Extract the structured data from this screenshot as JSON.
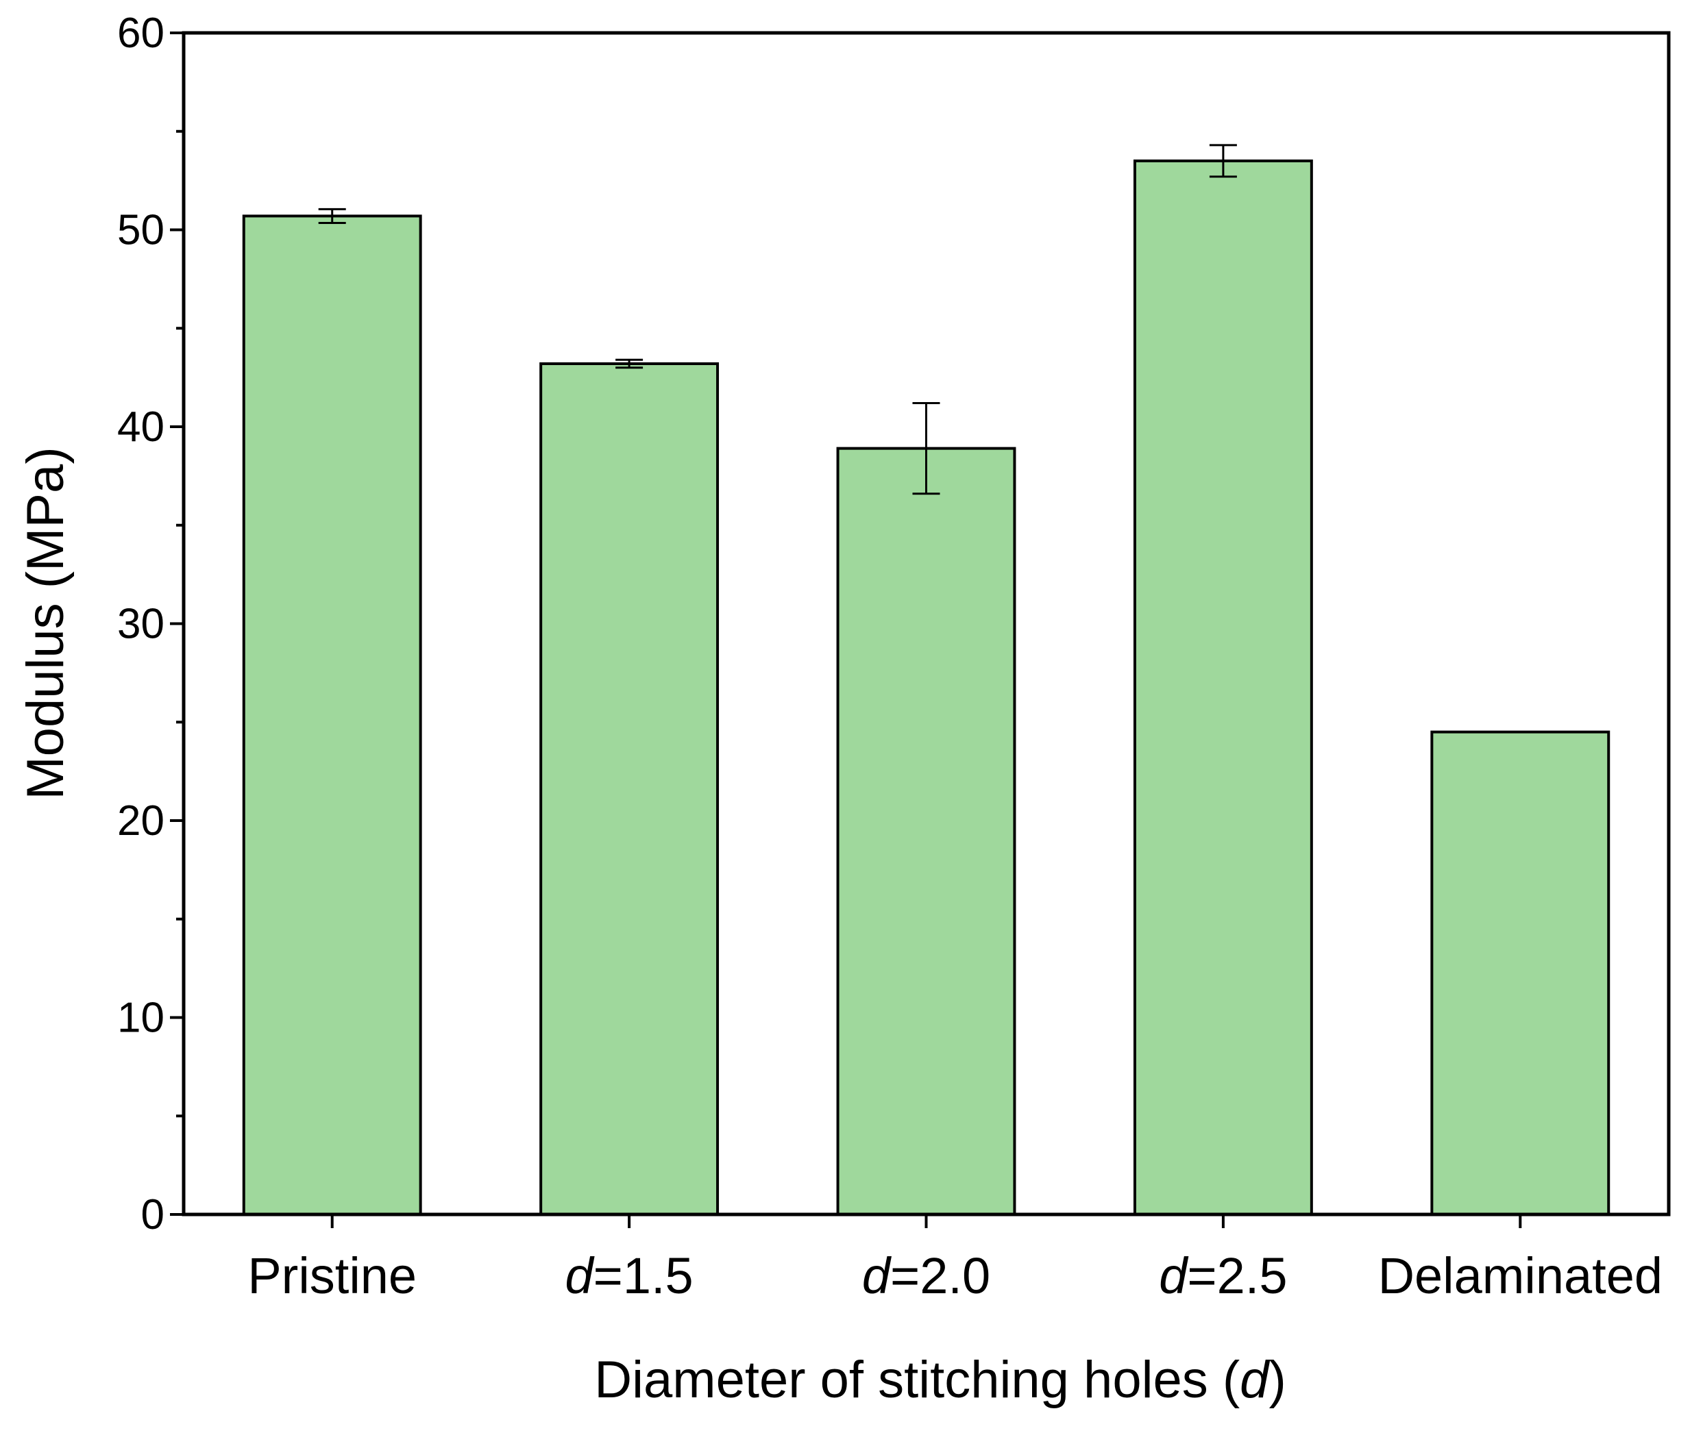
{
  "chart_data": {
    "type": "bar",
    "title": "",
    "xlabel": "Diameter of stitching holes (d)",
    "xlabel_parts": {
      "prefix": "Diameter of stitching holes (",
      "var": "d",
      "suffix": ")"
    },
    "ylabel": "Modulus (MPa)",
    "ylim": [
      0,
      60
    ],
    "yticks": [
      0,
      10,
      20,
      30,
      40,
      50,
      60
    ],
    "yticks_labels": [
      "0",
      "10",
      "20",
      "30",
      "40",
      "50",
      "60"
    ],
    "y_minor_step": 5,
    "grid": false,
    "bar_color": "#9fd89c",
    "bar_edge_color": "#000000",
    "categories": [
      "Pristine",
      "d=1.5",
      "d=2.0",
      "d=2.5",
      "Delaminated"
    ],
    "category_labels": [
      {
        "var": "",
        "text": "Pristine"
      },
      {
        "var": "d",
        "text": "=1.5"
      },
      {
        "var": "d",
        "text": "=2.0"
      },
      {
        "var": "d",
        "text": "=2.5"
      },
      {
        "var": "",
        "text": "Delaminated"
      }
    ],
    "values": [
      50.7,
      43.2,
      38.9,
      53.5,
      24.5
    ],
    "errors": [
      0.35,
      0.2,
      2.3,
      0.8,
      null
    ]
  }
}
